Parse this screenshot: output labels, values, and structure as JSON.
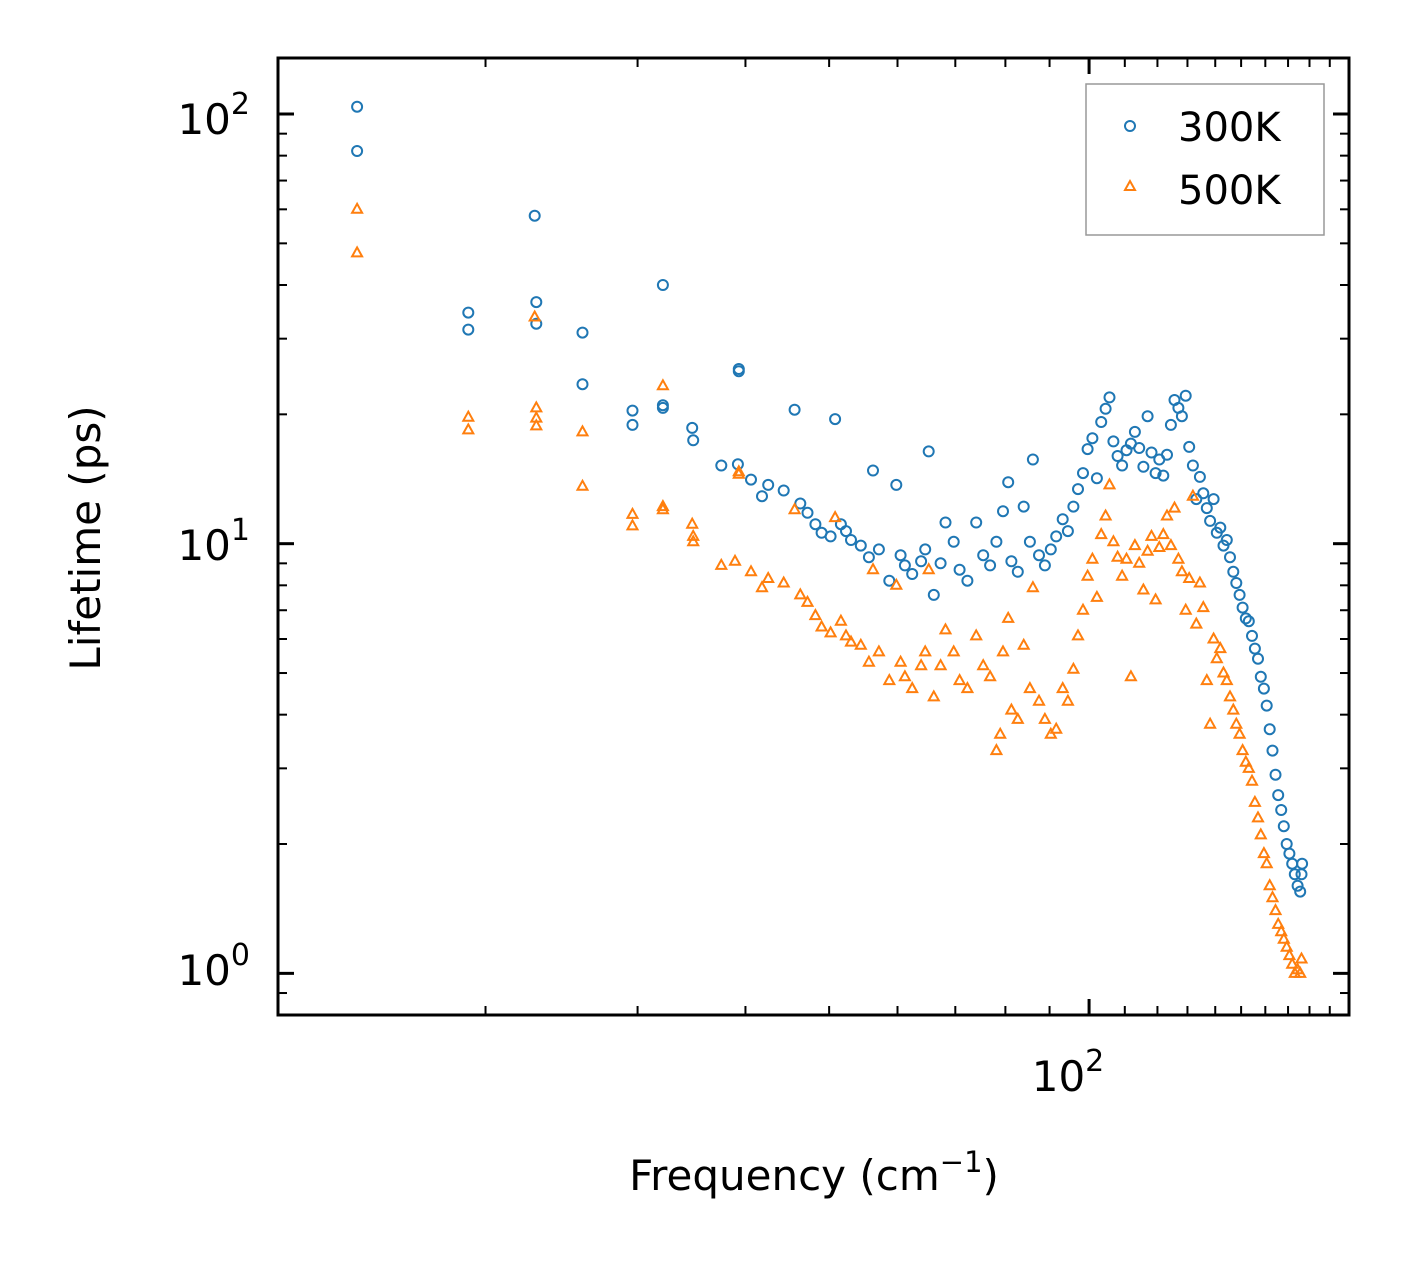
{
  "chart_data": {
    "type": "scatter",
    "title": "",
    "xlabel": "Frequency (cm",
    "xlabel_sup": "−1",
    "xlabel_end": ")",
    "ylabel": "Lifetime (ps)",
    "xscale": "log",
    "yscale": "log",
    "xlim": [
      11.5,
      200
    ],
    "ylim": [
      0.8,
      135
    ],
    "x_ticks": [
      {
        "value": 100,
        "base": "10",
        "exp": "2"
      }
    ],
    "y_ticks": [
      {
        "value": 1,
        "base": "10",
        "exp": "0"
      },
      {
        "value": 10,
        "base": "10",
        "exp": "1"
      },
      {
        "value": 100,
        "base": "10",
        "exp": "2"
      }
    ],
    "legend_position": "top-right",
    "series": [
      {
        "name": "300K",
        "color": "#1f77b4",
        "marker": "circle",
        "points": [
          [
            14.2,
            104
          ],
          [
            14.2,
            82
          ],
          [
            19.1,
            34.5
          ],
          [
            19.1,
            31.5
          ],
          [
            22.8,
            58
          ],
          [
            22.9,
            36.5
          ],
          [
            22.9,
            32.5
          ],
          [
            25.9,
            31
          ],
          [
            25.9,
            23.5
          ],
          [
            29.6,
            20.4
          ],
          [
            29.6,
            18.9
          ],
          [
            32.1,
            40
          ],
          [
            32.1,
            21
          ],
          [
            32.1,
            20.7
          ],
          [
            34.7,
            18.6
          ],
          [
            34.8,
            17.4
          ],
          [
            37.5,
            15.2
          ],
          [
            39.3,
            25.5
          ],
          [
            39.3,
            25.2
          ],
          [
            39.2,
            15.3
          ],
          [
            40.6,
            14.1
          ],
          [
            41.8,
            12.9
          ],
          [
            42.5,
            13.7
          ],
          [
            44.3,
            13.3
          ],
          [
            45.6,
            20.5
          ],
          [
            46.3,
            12.4
          ],
          [
            47.2,
            11.8
          ],
          [
            48.2,
            11.1
          ],
          [
            49.0,
            10.6
          ],
          [
            50.8,
            19.5
          ],
          [
            50.2,
            10.4
          ],
          [
            51.6,
            11.1
          ],
          [
            52.3,
            10.7
          ],
          [
            53.0,
            10.2
          ],
          [
            54.4,
            9.9
          ],
          [
            55.6,
            9.3
          ],
          [
            56.2,
            14.8
          ],
          [
            57.1,
            9.7
          ],
          [
            58.7,
            8.2
          ],
          [
            59.8,
            13.7
          ],
          [
            60.5,
            9.4
          ],
          [
            61.2,
            8.9
          ],
          [
            62.4,
            8.5
          ],
          [
            63.9,
            9.1
          ],
          [
            64.6,
            9.7
          ],
          [
            65.2,
            16.4
          ],
          [
            66.1,
            7.6
          ],
          [
            67.3,
            9.0
          ],
          [
            68.2,
            11.2
          ],
          [
            69.7,
            10.1
          ],
          [
            70.8,
            8.7
          ],
          [
            72.3,
            8.2
          ],
          [
            74.0,
            11.2
          ],
          [
            75.4,
            9.4
          ],
          [
            76.8,
            8.9
          ],
          [
            78.1,
            10.1
          ],
          [
            79.5,
            11.9
          ],
          [
            80.6,
            13.9
          ],
          [
            81.3,
            9.1
          ],
          [
            82.7,
            8.6
          ],
          [
            84.0,
            12.2
          ],
          [
            85.4,
            10.1
          ],
          [
            86.1,
            15.7
          ],
          [
            87.5,
            9.4
          ],
          [
            88.9,
            8.9
          ],
          [
            90.3,
            9.7
          ],
          [
            91.6,
            10.4
          ],
          [
            93.2,
            11.4
          ],
          [
            94.5,
            10.7
          ],
          [
            95.9,
            12.2
          ],
          [
            97.1,
            13.4
          ],
          [
            98.4,
            14.6
          ],
          [
            99.6,
            16.6
          ],
          [
            100.9,
            17.6
          ],
          [
            102.1,
            14.2
          ],
          [
            103.3,
            19.2
          ],
          [
            104.5,
            20.6
          ],
          [
            105.6,
            21.9
          ],
          [
            106.7,
            17.3
          ],
          [
            107.9,
            16.0
          ],
          [
            109.2,
            15.2
          ],
          [
            110.5,
            16.5
          ],
          [
            111.8,
            17.1
          ],
          [
            113.0,
            18.2
          ],
          [
            114.3,
            16.7
          ],
          [
            115.6,
            15.1
          ],
          [
            116.9,
            19.8
          ],
          [
            118.1,
            16.3
          ],
          [
            119.4,
            14.6
          ],
          [
            120.6,
            15.7
          ],
          [
            121.9,
            14.4
          ],
          [
            123.1,
            16.1
          ],
          [
            124.4,
            18.9
          ],
          [
            125.6,
            21.6
          ],
          [
            126.9,
            20.7
          ],
          [
            128.1,
            19.8
          ],
          [
            129.4,
            22.1
          ],
          [
            130.6,
            16.8
          ],
          [
            131.9,
            15.2
          ],
          [
            133.1,
            12.7
          ],
          [
            134.4,
            14.3
          ],
          [
            135.6,
            13.1
          ],
          [
            136.9,
            12.1
          ],
          [
            138.1,
            11.3
          ],
          [
            139.4,
            12.7
          ],
          [
            140.6,
            10.6
          ],
          [
            141.9,
            10.9
          ],
          [
            143.1,
            9.9
          ],
          [
            144.4,
            10.2
          ],
          [
            145.6,
            9.3
          ],
          [
            146.9,
            8.6
          ],
          [
            148.1,
            8.1
          ],
          [
            149.4,
            7.6
          ],
          [
            150.6,
            7.1
          ],
          [
            151.9,
            6.7
          ],
          [
            153.1,
            6.6
          ],
          [
            154.4,
            6.1
          ],
          [
            155.6,
            5.7
          ],
          [
            156.9,
            5.4
          ],
          [
            158.1,
            4.9
          ],
          [
            159.4,
            4.6
          ],
          [
            160.6,
            4.2
          ],
          [
            161.9,
            3.7
          ],
          [
            163.1,
            3.3
          ],
          [
            164.4,
            2.9
          ],
          [
            165.6,
            2.6
          ],
          [
            166.9,
            2.4
          ],
          [
            168.1,
            2.2
          ],
          [
            169.4,
            2.0
          ],
          [
            170.6,
            1.9
          ],
          [
            171.9,
            1.8
          ],
          [
            173.1,
            1.7
          ],
          [
            174.4,
            1.6
          ],
          [
            175.6,
            1.55
          ],
          [
            176.2,
            1.7
          ],
          [
            176.5,
            1.8
          ]
        ]
      },
      {
        "name": "500K",
        "color": "#ff7f0e",
        "marker": "triangle",
        "points": [
          [
            14.2,
            60
          ],
          [
            14.2,
            47.5
          ],
          [
            19.1,
            19.7
          ],
          [
            19.1,
            18.4
          ],
          [
            22.8,
            33.7
          ],
          [
            22.9,
            20.7
          ],
          [
            22.9,
            19.6
          ],
          [
            22.9,
            18.8
          ],
          [
            25.9,
            18.2
          ],
          [
            25.9,
            13.6
          ],
          [
            29.6,
            11.7
          ],
          [
            29.6,
            11.0
          ],
          [
            32.1,
            23.3
          ],
          [
            32.1,
            12.2
          ],
          [
            32.1,
            12.0
          ],
          [
            34.7,
            11.1
          ],
          [
            34.8,
            10.4
          ],
          [
            34.8,
            10.1
          ],
          [
            37.5,
            8.9
          ],
          [
            39.3,
            14.7
          ],
          [
            39.3,
            14.5
          ],
          [
            38.9,
            9.1
          ],
          [
            40.6,
            8.6
          ],
          [
            41.8,
            7.9
          ],
          [
            42.5,
            8.3
          ],
          [
            44.3,
            8.1
          ],
          [
            45.6,
            12.0
          ],
          [
            46.3,
            7.6
          ],
          [
            47.2,
            7.3
          ],
          [
            48.2,
            6.8
          ],
          [
            49.0,
            6.4
          ],
          [
            50.8,
            11.5
          ],
          [
            50.2,
            6.2
          ],
          [
            51.6,
            6.6
          ],
          [
            52.3,
            6.1
          ],
          [
            53.0,
            5.9
          ],
          [
            54.4,
            5.8
          ],
          [
            55.6,
            5.3
          ],
          [
            56.2,
            8.7
          ],
          [
            57.1,
            5.6
          ],
          [
            58.7,
            4.8
          ],
          [
            59.8,
            8.0
          ],
          [
            60.5,
            5.3
          ],
          [
            61.2,
            4.9
          ],
          [
            62.4,
            4.6
          ],
          [
            63.9,
            5.2
          ],
          [
            64.6,
            5.6
          ],
          [
            65.2,
            8.7
          ],
          [
            66.1,
            4.4
          ],
          [
            67.3,
            5.2
          ],
          [
            68.2,
            6.3
          ],
          [
            69.7,
            5.6
          ],
          [
            70.8,
            4.8
          ],
          [
            72.3,
            4.6
          ],
          [
            74.0,
            6.1
          ],
          [
            75.4,
            5.2
          ],
          [
            76.8,
            4.9
          ],
          [
            78.1,
            3.3
          ],
          [
            78.9,
            3.6
          ],
          [
            79.5,
            5.6
          ],
          [
            80.6,
            6.7
          ],
          [
            81.3,
            4.1
          ],
          [
            82.7,
            3.9
          ],
          [
            84.0,
            5.8
          ],
          [
            85.4,
            4.6
          ],
          [
            86.1,
            7.9
          ],
          [
            87.5,
            4.3
          ],
          [
            88.9,
            3.9
          ],
          [
            90.3,
            3.6
          ],
          [
            91.6,
            3.7
          ],
          [
            93.2,
            4.6
          ],
          [
            94.5,
            4.3
          ],
          [
            95.9,
            5.1
          ],
          [
            97.1,
            6.1
          ],
          [
            98.4,
            7.0
          ],
          [
            99.6,
            8.4
          ],
          [
            100.9,
            9.2
          ],
          [
            102.1,
            7.5
          ],
          [
            103.3,
            10.5
          ],
          [
            104.5,
            11.6
          ],
          [
            105.6,
            13.7
          ],
          [
            106.7,
            10.1
          ],
          [
            107.9,
            9.3
          ],
          [
            109.2,
            8.4
          ],
          [
            110.5,
            9.2
          ],
          [
            111.8,
            4.9
          ],
          [
            113.0,
            9.9
          ],
          [
            114.3,
            9.0
          ],
          [
            115.6,
            7.8
          ],
          [
            116.9,
            9.6
          ],
          [
            118.1,
            10.4
          ],
          [
            119.4,
            7.4
          ],
          [
            120.6,
            9.8
          ],
          [
            121.9,
            10.5
          ],
          [
            123.1,
            11.6
          ],
          [
            124.4,
            9.9
          ],
          [
            125.6,
            12.1
          ],
          [
            126.9,
            9.2
          ],
          [
            128.1,
            8.6
          ],
          [
            129.4,
            7.0
          ],
          [
            130.6,
            8.3
          ],
          [
            131.9,
            12.9
          ],
          [
            133.1,
            6.5
          ],
          [
            134.4,
            8.1
          ],
          [
            135.6,
            7.1
          ],
          [
            136.9,
            4.8
          ],
          [
            138.1,
            3.8
          ],
          [
            139.4,
            6.0
          ],
          [
            140.6,
            5.4
          ],
          [
            141.9,
            5.7
          ],
          [
            143.1,
            5.0
          ],
          [
            144.4,
            4.8
          ],
          [
            145.6,
            4.4
          ],
          [
            146.9,
            4.1
          ],
          [
            148.1,
            3.8
          ],
          [
            149.4,
            3.6
          ],
          [
            150.6,
            3.3
          ],
          [
            151.9,
            3.1
          ],
          [
            153.1,
            3.0
          ],
          [
            154.4,
            2.8
          ],
          [
            155.6,
            2.5
          ],
          [
            156.9,
            2.3
          ],
          [
            158.1,
            2.1
          ],
          [
            159.4,
            1.9
          ],
          [
            160.6,
            1.8
          ],
          [
            161.9,
            1.6
          ],
          [
            163.1,
            1.5
          ],
          [
            164.4,
            1.4
          ],
          [
            165.6,
            1.3
          ],
          [
            166.9,
            1.25
          ],
          [
            168.1,
            1.2
          ],
          [
            169.4,
            1.15
          ],
          [
            170.6,
            1.1
          ],
          [
            171.9,
            1.05
          ],
          [
            173.1,
            1.0
          ],
          [
            174.4,
            1.02
          ],
          [
            175.6,
            1.0
          ],
          [
            176.2,
            1.08
          ]
        ]
      }
    ]
  }
}
